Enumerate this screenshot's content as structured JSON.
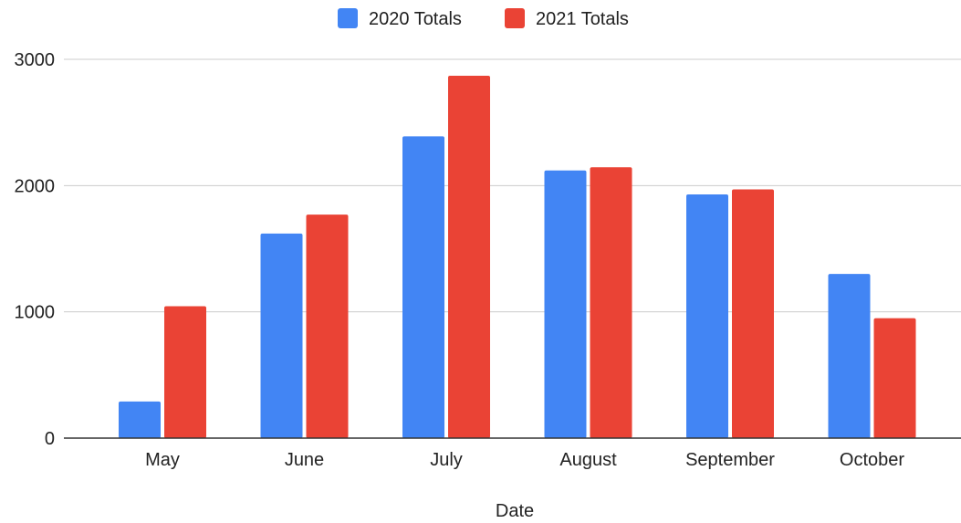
{
  "chart_data": {
    "type": "bar",
    "title": "",
    "xlabel": "Date",
    "ylabel": "",
    "categories": [
      "May",
      "June",
      "July",
      "August",
      "September",
      "October"
    ],
    "series": [
      {
        "name": "2020 Totals",
        "color": "#4285F4",
        "values": [
          290,
          1620,
          2390,
          2120,
          1930,
          1300
        ]
      },
      {
        "name": "2021 Totals",
        "color": "#EA4335",
        "values": [
          1045,
          1770,
          2870,
          2145,
          1970,
          950
        ]
      }
    ],
    "ylim": [
      0,
      3000
    ],
    "yticks": [
      0,
      1000,
      2000,
      3000
    ],
    "grid": true,
    "legend_position": "top"
  }
}
